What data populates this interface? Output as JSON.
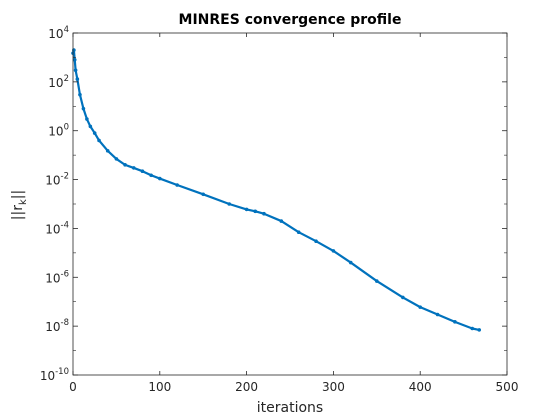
{
  "chart_data": {
    "type": "line",
    "title": "MINRES convergence profile",
    "xlabel": "iterations",
    "ylabel_main": "||r",
    "ylabel_sub": "k",
    "ylabel_end": "||",
    "xlim": [
      0,
      500
    ],
    "ylim": [
      1e-10,
      10000
    ],
    "y_scale": "log",
    "x_ticks": [
      0,
      100,
      200,
      300,
      400,
      500
    ],
    "y_ticks": [
      {
        "base": "10",
        "exp": "-10",
        "value": 1e-10
      },
      {
        "base": "10",
        "exp": "-8",
        "value": 1e-08
      },
      {
        "base": "10",
        "exp": "-6",
        "value": 1e-06
      },
      {
        "base": "10",
        "exp": "-4",
        "value": 0.0001
      },
      {
        "base": "10",
        "exp": "-2",
        "value": 0.01
      },
      {
        "base": "10",
        "exp": "0",
        "value": 1
      },
      {
        "base": "10",
        "exp": "2",
        "value": 100
      },
      {
        "base": "10",
        "exp": "4",
        "value": 10000
      }
    ],
    "grid": false,
    "line_color": "#0072BD",
    "series": [
      {
        "x": [
          0,
          1,
          2,
          3,
          5,
          8,
          12,
          16,
          20,
          25,
          30,
          40,
          50,
          60,
          70,
          80,
          90,
          100,
          120,
          150,
          180,
          200,
          210,
          220,
          240,
          260,
          280,
          300,
          320,
          350,
          380,
          400,
          420,
          440,
          460,
          468
        ],
        "y": [
          1500,
          2000,
          800,
          300,
          130,
          30,
          8,
          3,
          1.5,
          0.8,
          0.4,
          0.15,
          0.07,
          0.04,
          0.03,
          0.022,
          0.015,
          0.011,
          0.006,
          0.0025,
          0.001,
          0.0006,
          0.0005,
          0.0004,
          0.0002,
          7e-05,
          3e-05,
          1.2e-05,
          4e-06,
          7e-07,
          1.5e-07,
          6e-08,
          3e-08,
          1.5e-08,
          8e-09,
          7e-09
        ]
      }
    ]
  }
}
